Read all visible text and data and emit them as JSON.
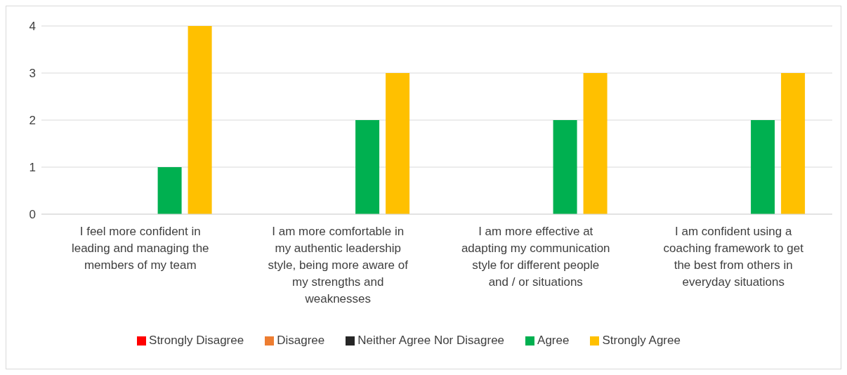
{
  "chart_data": {
    "type": "bar",
    "categories": [
      "I feel more confident in leading and managing the members of my team",
      "I am more comfortable in my authentic leadership style, being more aware of my strengths and weaknesses",
      "I am more effective at adapting my communication style for different people and / or situations",
      "I am confident using a coaching framework to get the best from others in everyday situations"
    ],
    "series": [
      {
        "name": "Strongly Disagree",
        "color": "#ff0000",
        "values": [
          0,
          0,
          0,
          0
        ]
      },
      {
        "name": "Disagree",
        "color": "#ed7d31",
        "values": [
          0,
          0,
          0,
          0
        ]
      },
      {
        "name": "Neither Agree Nor Disagree",
        "color": "#262626",
        "values": [
          0,
          0,
          0,
          0
        ]
      },
      {
        "name": "Agree",
        "color": "#00b050",
        "values": [
          1,
          2,
          2,
          2
        ]
      },
      {
        "name": "Strongly Agree",
        "color": "#ffc000",
        "values": [
          4,
          3,
          3,
          3
        ]
      }
    ],
    "ylim": [
      0,
      4
    ],
    "yticks": [
      0,
      1,
      2,
      3,
      4
    ],
    "grid": "y",
    "legend": "bottom"
  }
}
